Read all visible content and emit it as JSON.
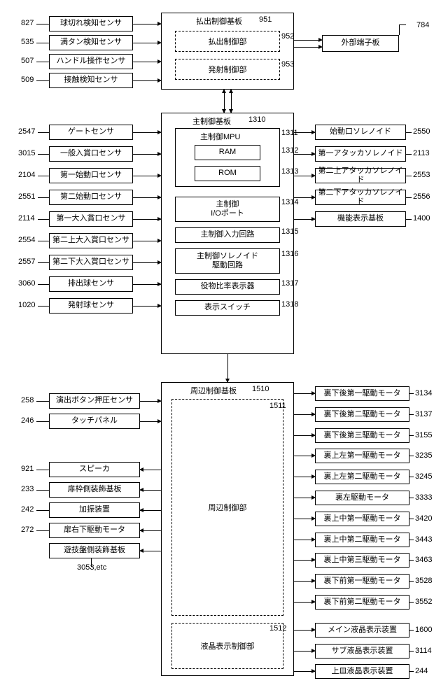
{
  "topLeft": [
    {
      "num": "827",
      "label": "球切れ検知センサ"
    },
    {
      "num": "535",
      "label": "満タン検知センサ"
    },
    {
      "num": "507",
      "label": "ハンドル操作センサ"
    },
    {
      "num": "509",
      "label": "接触検知センサ"
    }
  ],
  "topBoard": {
    "title": "払出制御基板",
    "num": "951",
    "items": [
      {
        "label": "払出制御部",
        "num": "952"
      },
      {
        "label": "発射制御部",
        "num": "953"
      }
    ]
  },
  "topRight": {
    "label": "外部端子板",
    "num": "784"
  },
  "midLeft": [
    {
      "num": "2547",
      "label": "ゲートセンサ"
    },
    {
      "num": "3015",
      "label": "一般入賞口センサ"
    },
    {
      "num": "2104",
      "label": "第一始動口センサ"
    },
    {
      "num": "2551",
      "label": "第二始動口センサ"
    },
    {
      "num": "2114",
      "label": "第一大入賞口センサ"
    },
    {
      "num": "2554",
      "label": "第二上大入賞口センサ"
    },
    {
      "num": "2557",
      "label": "第二下大入賞口センサ"
    },
    {
      "num": "3060",
      "label": "排出球センサ"
    },
    {
      "num": "1020",
      "label": "発射球センサ"
    }
  ],
  "midBoard": {
    "title": "主制御基板",
    "num": "1310",
    "mpu": {
      "label": "主制御MPU",
      "num": "1311",
      "ram": {
        "label": "RAM",
        "num": "1312"
      },
      "rom": {
        "label": "ROM",
        "num": "1313"
      }
    },
    "io": {
      "label": "主制御\nI/Oポート",
      "num": "1314"
    },
    "in": {
      "label": "主制御入力回路",
      "num": "1315"
    },
    "sol": {
      "label": "主制御ソレノイド\n駆動回路",
      "num": "1316"
    },
    "ratio": {
      "label": "役物比率表示器",
      "num": "1317"
    },
    "sw": {
      "label": "表示スイッチ",
      "num": "1318"
    }
  },
  "midRight": [
    {
      "num": "2550",
      "label": "始動口ソレノイド"
    },
    {
      "num": "2113",
      "label": "第一アタッカソレノイド"
    },
    {
      "num": "2553",
      "label": "第二上アタッカソレノイド"
    },
    {
      "num": "2556",
      "label": "第二下アタッカソレノイド"
    },
    {
      "num": "1400",
      "label": "機能表示基板"
    }
  ],
  "botLeft1": [
    {
      "num": "258",
      "label": "演出ボタン押圧センサ"
    },
    {
      "num": "246",
      "label": "タッチパネル"
    }
  ],
  "botLeft2": [
    {
      "num": "921",
      "label": "スピーカ"
    },
    {
      "num": "233",
      "label": "扉枠側装飾基板"
    },
    {
      "num": "242",
      "label": "加振装置"
    },
    {
      "num": "272",
      "label": "扉右下駆動モータ"
    },
    {
      "num": "",
      "label": "遊技盤側装飾基板"
    }
  ],
  "botNote": "3053,etc",
  "botBoard": {
    "title": "周辺制御基板",
    "num": "1510",
    "ctrl": {
      "label": "周辺制御部",
      "num": "1511"
    },
    "lcd": {
      "label": "液晶表示制御部",
      "num": "1512"
    }
  },
  "botRight1": [
    {
      "num": "3134",
      "label": "裏下後第一駆動モータ"
    },
    {
      "num": "3137",
      "label": "裏下後第二駆動モータ"
    },
    {
      "num": "3155",
      "label": "裏下後第三駆動モータ"
    },
    {
      "num": "3235",
      "label": "裏上左第一駆動モータ"
    },
    {
      "num": "3245",
      "label": "裏上左第二駆動モータ"
    },
    {
      "num": "3333",
      "label": "裏左駆動モータ"
    },
    {
      "num": "3420",
      "label": "裏上中第一駆動モータ"
    },
    {
      "num": "3443",
      "label": "裏上中第二駆動モータ"
    },
    {
      "num": "3463",
      "label": "裏上中第三駆動モータ"
    },
    {
      "num": "3528",
      "label": "裏下前第一駆動モータ"
    },
    {
      "num": "3552",
      "label": "裏下前第二駆動モータ"
    }
  ],
  "botRight2": [
    {
      "num": "1600",
      "label": "メイン液晶表示装置"
    },
    {
      "num": "3114",
      "label": "サブ液晶表示装置"
    },
    {
      "num": "244",
      "label": "上皿液晶表示装置"
    }
  ]
}
